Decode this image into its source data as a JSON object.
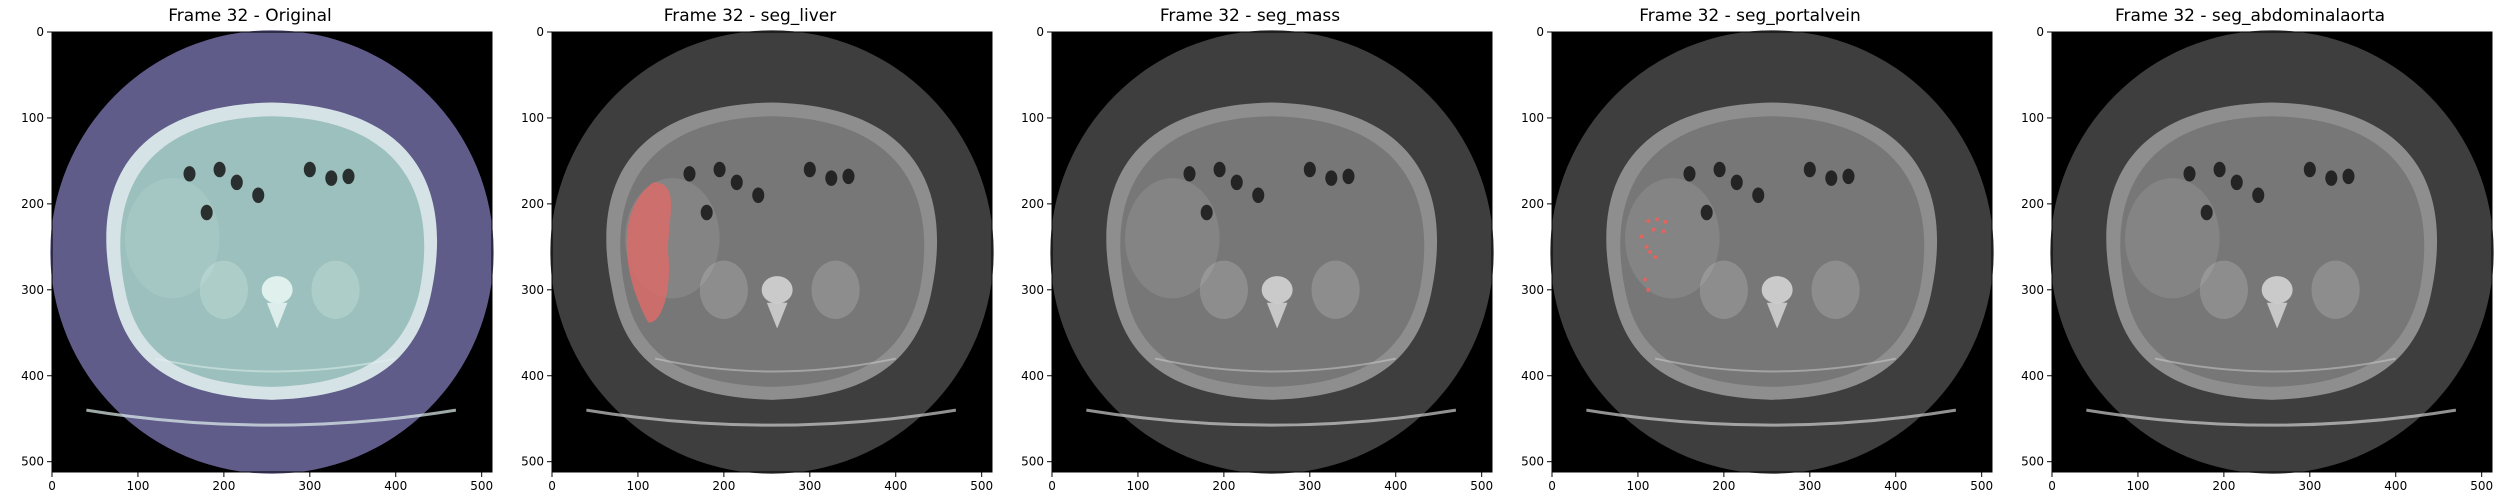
{
  "figure": {
    "panels": [
      {
        "title": "Frame 32 - Original",
        "overlay": "none",
        "palette": {
          "inner": "#9bc0bd",
          "disc": "#5f5c8a",
          "bone": "#e3f2ef",
          "background": "#000000"
        }
      },
      {
        "title": "Frame 32 - seg_liver",
        "overlay": "liver",
        "palette": {
          "inner": "#777777",
          "disc": "#3e3e3e",
          "bone": "#cfcfcf",
          "background": "#000000"
        },
        "overlay_color": "#d86b68"
      },
      {
        "title": "Frame 32 - seg_mass",
        "overlay": "none",
        "palette": {
          "inner": "#777777",
          "disc": "#3e3e3e",
          "bone": "#cfcfcf",
          "background": "#000000"
        }
      },
      {
        "title": "Frame 32 - seg_portalvein",
        "overlay": "portalvein",
        "palette": {
          "inner": "#777777",
          "disc": "#3e3e3e",
          "bone": "#cfcfcf",
          "background": "#000000"
        },
        "overlay_color": "#e0645f"
      },
      {
        "title": "Frame 32 - seg_abdominalaorta",
        "overlay": "none",
        "palette": {
          "inner": "#777777",
          "disc": "#3e3e3e",
          "bone": "#cfcfcf",
          "background": "#000000"
        }
      }
    ],
    "x_ticks": [
      "0",
      "100",
      "200",
      "300",
      "400",
      "500"
    ],
    "y_ticks": [
      "0",
      "100",
      "200",
      "300",
      "400",
      "500"
    ],
    "axis_range": [
      0,
      511
    ]
  }
}
